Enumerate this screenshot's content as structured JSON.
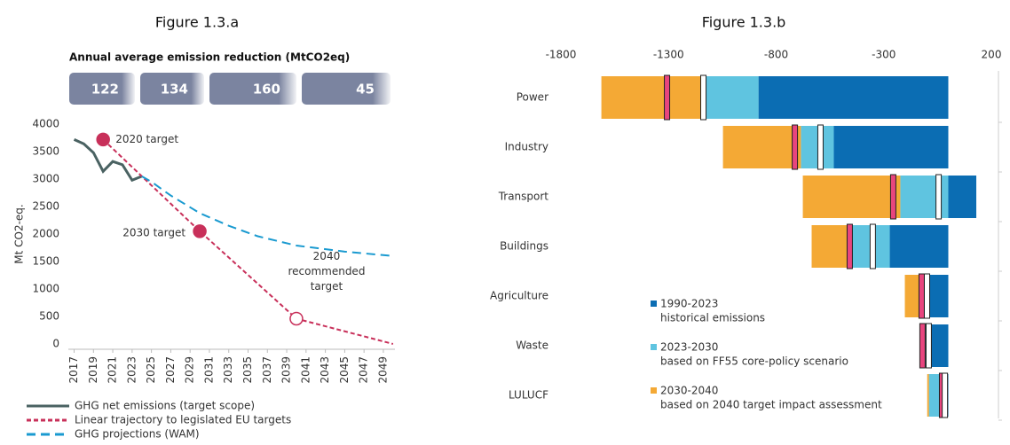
{
  "chart_data": [
    {
      "type": "line",
      "title": "Figure 1.3.a",
      "reduction": {
        "title": "Annual average emission reduction (MtCO2eq)",
        "values": [
          122,
          134,
          160,
          45
        ]
      },
      "ylabel": "Mt CO2-eq.",
      "xlim": [
        2016.4,
        2050.2
      ],
      "xticks": [
        2017,
        2019,
        2021,
        2023,
        2025,
        2027,
        2029,
        2031,
        2033,
        2035,
        2037,
        2039,
        2041,
        2043,
        2045,
        2047,
        2049
      ],
      "ylim": [
        0,
        4000
      ],
      "yticks": [
        0,
        500,
        1000,
        1500,
        2000,
        2500,
        3000,
        3500,
        4000
      ],
      "series": [
        {
          "name": "GHG net emissions (target scope)",
          "color": "#4a6262",
          "dash": "solid",
          "x": [
            2017,
            2018,
            2019,
            2020,
            2021,
            2022,
            2023,
            2024
          ],
          "values": [
            3720,
            3640,
            3480,
            3140,
            3320,
            3260,
            2980,
            3050
          ]
        },
        {
          "name": "Linear trajectory to legislated EU targets",
          "color": "#c8305a",
          "dash": "dashed",
          "x": [
            2020,
            2030,
            2040,
            2050
          ],
          "values": [
            3720,
            2050,
            460,
            0
          ]
        },
        {
          "name": "GHG projections (WAM)",
          "color": "#1a9ad0",
          "dash": "dashed",
          "x": [
            2024,
            2025,
            2027,
            2030,
            2033,
            2036,
            2040,
            2045,
            2050
          ],
          "values": [
            3050,
            2950,
            2700,
            2380,
            2150,
            1960,
            1790,
            1680,
            1600
          ]
        }
      ],
      "annotations": [
        {
          "lines": [
            "2020 target"
          ],
          "x": 2020,
          "y": 3720,
          "filled": true
        },
        {
          "lines": [
            "2030 target"
          ],
          "x": 2030,
          "y": 2050,
          "filled": true
        },
        {
          "lines": [
            "2040",
            "recommended",
            "target"
          ],
          "x": 2040,
          "y": 460,
          "filled": false
        }
      ]
    },
    {
      "type": "hbar_stacked",
      "title": "Figure 1.3.b",
      "categories": [
        "Power",
        "Industry",
        "Transport",
        "Buildings",
        "Agriculture",
        "Waste",
        "LULUCF"
      ],
      "xlim": [
        -1800,
        200
      ],
      "xticks": [
        -1800,
        -1300,
        -800,
        -300,
        200
      ],
      "series": [
        {
          "name": "1990-2023",
          "description": "historical emissions",
          "color": "#0b6db3",
          "values": [
            -882,
            -532,
            130,
            -272,
            -91,
            -78,
            -40
          ]
        },
        {
          "name": "2023-2030",
          "description": "based on FF55 core-policy scenario",
          "color": "#5fc4e0",
          "values": [
            -248,
            -153,
            -223,
            -177,
            -29,
            -42,
            -50
          ]
        },
        {
          "name": "2030-2040",
          "description": "based on 2040 target impact assessment",
          "color": "#f4a935",
          "values": [
            -482,
            -362,
            -453,
            -186,
            -82,
            -12,
            -8
          ]
        }
      ],
      "markers": [
        {
          "color": "#e8457e",
          "values": [
            -1307,
            -713,
            -256,
            -458,
            -124,
            -120,
            -29
          ]
        },
        {
          "color": "#ffffff",
          "values": [
            -1138,
            -594,
            -45,
            -351,
            -99,
            -91,
            -16
          ]
        }
      ]
    }
  ]
}
